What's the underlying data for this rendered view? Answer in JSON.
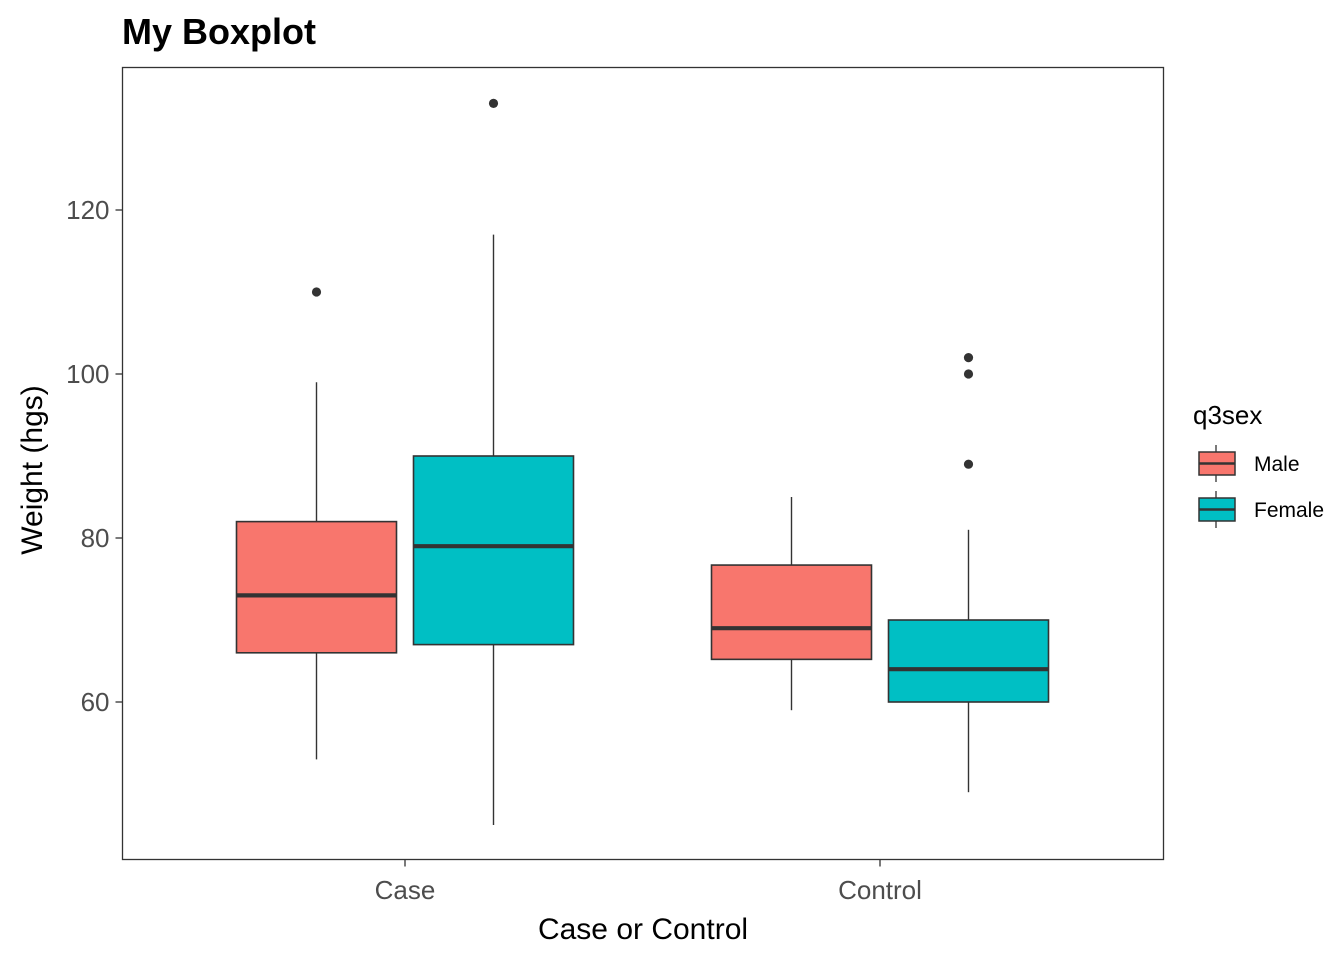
{
  "chart_data": {
    "type": "boxplot",
    "title": "My Boxplot",
    "xlabel": "Case or Control",
    "ylabel": "Weight (hgs)",
    "categories": [
      "Case",
      "Control"
    ],
    "yticks": [
      60,
      80,
      100,
      120
    ],
    "ylim": [
      42,
      139
    ],
    "grid": false,
    "legend": {
      "title": "q3sex",
      "position": "right",
      "entries": [
        {
          "label": "Male",
          "color": "#F8766D"
        },
        {
          "label": "Female",
          "color": "#00BFC4"
        }
      ]
    },
    "series": [
      {
        "name": "Male",
        "color": "#F8766D",
        "boxes": [
          {
            "category": "Case",
            "min": 53,
            "q1": 66,
            "median": 73,
            "q3": 82,
            "max": 99,
            "outliers": [
              110
            ]
          },
          {
            "category": "Control",
            "min": 59,
            "q1": 65.2,
            "median": 69,
            "q3": 76.7,
            "max": 85,
            "outliers": []
          }
        ]
      },
      {
        "name": "Female",
        "color": "#00BFC4",
        "boxes": [
          {
            "category": "Case",
            "min": 45,
            "q1": 67,
            "median": 79,
            "q3": 90,
            "max": 117,
            "outliers": [
              133
            ]
          },
          {
            "category": "Control",
            "min": 49,
            "q1": 60,
            "median": 64,
            "q3": 70,
            "max": 81,
            "outliers": [
              89,
              100,
              102
            ]
          }
        ]
      }
    ]
  }
}
